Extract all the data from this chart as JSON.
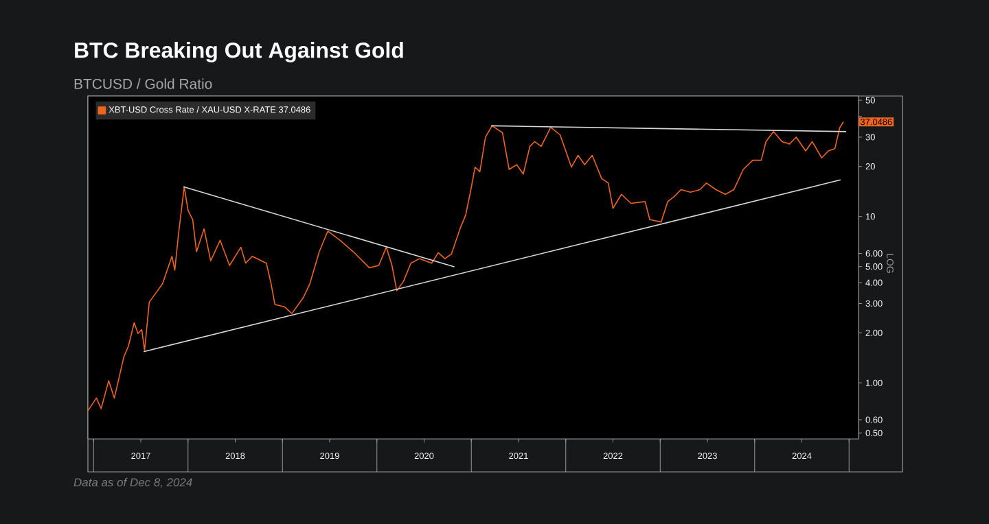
{
  "chart_data": {
    "type": "line",
    "title": "BTC Breaking Out Against Gold",
    "subtitle": "BTCUSD / Gold Ratio",
    "log": "y",
    "legend": "top left",
    "xlim": [
      2016.94,
      2025.1
    ],
    "ylim": [
      0.46,
      53
    ],
    "xticks": [
      {
        "value": 2017.0,
        "label": null
      },
      {
        "value": 2017.5,
        "label": "2017"
      },
      {
        "value": 2018.0,
        "label": null
      },
      {
        "value": 2018.5,
        "label": "2018"
      },
      {
        "value": 2019.0,
        "label": null
      },
      {
        "value": 2019.5,
        "label": "2019"
      },
      {
        "value": 2020.0,
        "label": null
      },
      {
        "value": 2020.5,
        "label": "2020"
      },
      {
        "value": 2021.0,
        "label": null
      },
      {
        "value": 2021.5,
        "label": "2021"
      },
      {
        "value": 2022.0,
        "label": null
      },
      {
        "value": 2022.5,
        "label": "2022"
      },
      {
        "value": 2023.0,
        "label": null
      },
      {
        "value": 2023.5,
        "label": "2023"
      },
      {
        "value": 2024.0,
        "label": null
      },
      {
        "value": 2024.5,
        "label": "2024"
      },
      {
        "value": 2025.0,
        "label": null
      }
    ],
    "yticks": [
      {
        "value": 0.5,
        "label": "0.50"
      },
      {
        "value": 0.6,
        "label": "0.60"
      },
      {
        "value": 1,
        "label": "1.00"
      },
      {
        "value": 2,
        "label": "2.00"
      },
      {
        "value": 3,
        "label": "3.00"
      },
      {
        "value": 4,
        "label": "4.00"
      },
      {
        "value": 5,
        "label": "5.00"
      },
      {
        "value": 6,
        "label": "6.00"
      },
      10,
      20,
      30,
      {
        "value": 40,
        "label": null
      },
      50
    ],
    "series": [
      {
        "name": "XBT-USD Cross Rate / XAU-USD X-RATE 37.0486",
        "color": "#f0641e",
        "x": [
          2016.94,
          2017.03,
          2017.08,
          2017.16,
          2017.22,
          2017.32,
          2017.37,
          2017.43,
          2017.47,
          2017.51,
          2017.54,
          2017.59,
          2017.66,
          2017.73,
          2017.83,
          2017.86,
          2017.9,
          2017.96,
          2018.0,
          2018.05,
          2018.09,
          2018.17,
          2018.24,
          2018.34,
          2018.44,
          2018.56,
          2018.61,
          2018.68,
          2018.83,
          2018.88,
          2018.92,
          2019.02,
          2019.1,
          2019.22,
          2019.29,
          2019.39,
          2019.48,
          2019.61,
          2019.75,
          2019.92,
          2020.02,
          2020.1,
          2020.16,
          2020.21,
          2020.28,
          2020.36,
          2020.45,
          2020.58,
          2020.65,
          2020.72,
          2020.79,
          2020.88,
          2020.94,
          2020.99,
          2021.04,
          2021.09,
          2021.15,
          2021.22,
          2021.33,
          2021.4,
          2021.48,
          2021.55,
          2021.62,
          2021.67,
          2021.74,
          2021.84,
          2021.94,
          2022.06,
          2022.13,
          2022.2,
          2022.28,
          2022.38,
          2022.45,
          2022.5,
          2022.59,
          2022.69,
          2022.84,
          2022.89,
          2023.01,
          2023.08,
          2023.15,
          2023.22,
          2023.32,
          2023.42,
          2023.49,
          2023.59,
          2023.69,
          2023.78,
          2023.88,
          2023.98,
          2024.07,
          2024.12,
          2024.2,
          2024.29,
          2024.37,
          2024.44,
          2024.54,
          2024.61,
          2024.71,
          2024.78,
          2024.85,
          2024.9,
          2024.94
        ],
        "values": [
          0.68,
          0.81,
          0.7,
          1.03,
          0.81,
          1.43,
          1.67,
          2.3,
          1.98,
          2.09,
          1.57,
          3.06,
          3.47,
          3.94,
          5.76,
          4.76,
          7.91,
          15.1,
          10.9,
          9.57,
          6.14,
          8.43,
          5.41,
          7.19,
          5.08,
          6.54,
          5.24,
          5.76,
          5.24,
          3.94,
          2.96,
          2.87,
          2.61,
          3.25,
          3.94,
          6.14,
          8.17,
          7.19,
          6.14,
          4.92,
          5.08,
          6.54,
          5.08,
          3.58,
          4.06,
          5.24,
          5.58,
          5.24,
          6.06,
          5.58,
          5.95,
          8.43,
          10.2,
          14.0,
          19.8,
          18.6,
          30.0,
          35.1,
          31.9,
          19.2,
          20.5,
          18.0,
          26.4,
          28.2,
          26.4,
          34.4,
          31.0,
          19.8,
          23.3,
          20.5,
          23.3,
          16.9,
          15.9,
          11.2,
          13.6,
          12.0,
          12.3,
          9.57,
          9.27,
          12.3,
          13.2,
          14.5,
          14.0,
          14.5,
          15.9,
          14.5,
          13.6,
          14.5,
          19.2,
          21.8,
          21.8,
          28.2,
          32.4,
          28.2,
          27.3,
          30.0,
          24.8,
          28.2,
          22.5,
          24.8,
          25.6,
          34.1,
          37.0486
        ]
      },
      {
        "type": "line",
        "color": "#d9d9d9",
        "x": [
          2017.95,
          2020.82
        ],
        "values": [
          15.1,
          4.98
        ]
      },
      {
        "type": "line",
        "color": "#d9d9d9",
        "x": [
          2017.53,
          2024.91
        ],
        "values": [
          1.54,
          16.6
        ]
      },
      {
        "type": "line",
        "color": "#d9d9d9",
        "x": [
          2021.21,
          2024.97
        ],
        "values": [
          35.1,
          32.4
        ]
      }
    ],
    "annotations": [
      "Data as of Dec 8, 2024",
      "LOG",
      "37.0486"
    ]
  }
}
